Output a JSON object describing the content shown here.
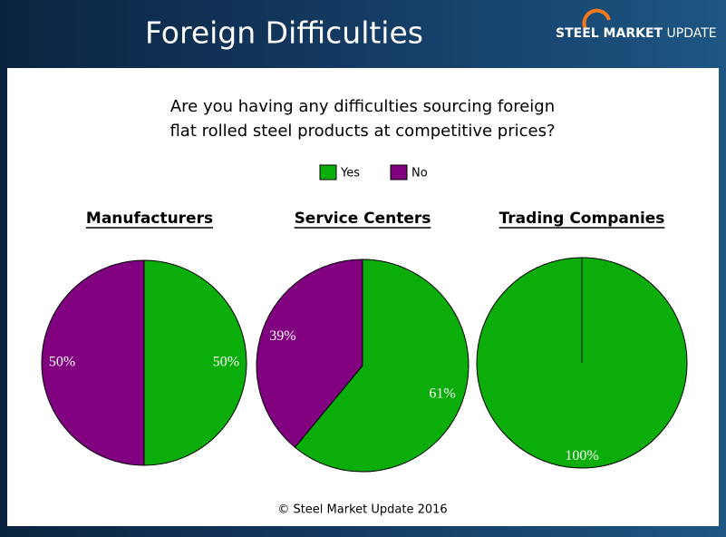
{
  "header": {
    "title": "Foreign Difficulties",
    "logo": {
      "bold": "STEEL MARKET",
      "light": "UPDATE"
    }
  },
  "question": [
    "Are you having any difficulties sourcing foreign",
    "flat rolled steel products at competitive prices?"
  ],
  "footer": "© Steel Market Update 2016",
  "chart_data": [
    {
      "type": "pie",
      "title": "Manufacturers",
      "categories": [
        "Yes",
        "No"
      ],
      "values": [
        50,
        50
      ],
      "value_labels": [
        "50%",
        "50%"
      ],
      "colors": [
        "#0aad0a",
        "#800080"
      ]
    },
    {
      "type": "pie",
      "title": "Service Centers",
      "categories": [
        "Yes",
        "No"
      ],
      "values": [
        61,
        39
      ],
      "value_labels": [
        "61%",
        "39%"
      ],
      "colors": [
        "#0aad0a",
        "#800080"
      ]
    },
    {
      "type": "pie",
      "title": "Trading Companies",
      "categories": [
        "Yes",
        "No"
      ],
      "values": [
        100,
        0
      ],
      "value_labels": [
        "100%",
        null
      ],
      "colors": [
        "#0aad0a",
        "#800080"
      ]
    }
  ]
}
